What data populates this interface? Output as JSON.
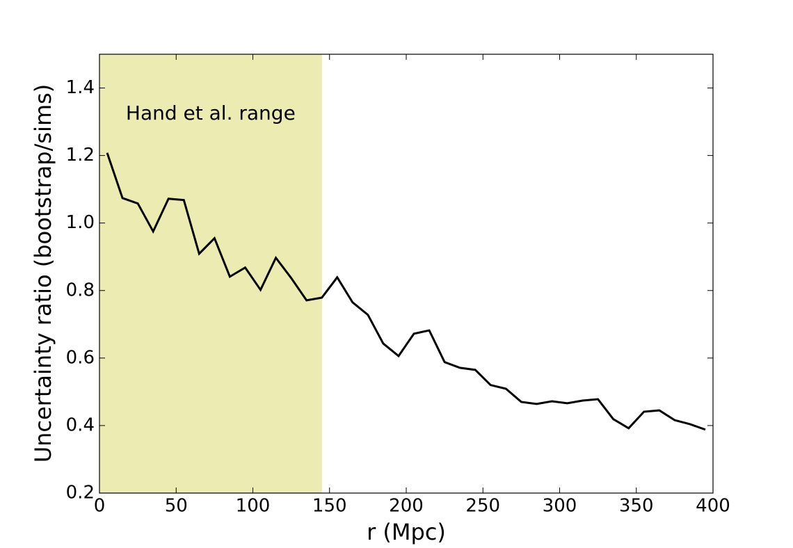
{
  "chart_data": {
    "type": "line",
    "xlabel": "r (Mpc)",
    "ylabel": "Uncertainty ratio (bootstrap/sims)",
    "x": [
      5,
      15,
      25,
      35,
      45,
      55,
      65,
      75,
      85,
      95,
      105,
      115,
      125,
      135,
      145,
      155,
      165,
      175,
      185,
      195,
      205,
      215,
      225,
      235,
      245,
      255,
      265,
      275,
      285,
      295,
      305,
      315,
      325,
      335,
      345,
      355,
      365,
      375,
      385,
      395
    ],
    "series": [
      {
        "color": "#000000",
        "values": [
          1.208,
          1.074,
          1.058,
          0.975,
          1.072,
          1.068,
          0.909,
          0.955,
          0.841,
          0.868,
          0.802,
          0.897,
          0.837,
          0.771,
          0.779,
          0.839,
          0.765,
          0.728,
          0.643,
          0.606,
          0.672,
          0.682,
          0.588,
          0.571,
          0.565,
          0.52,
          0.509,
          0.47,
          0.464,
          0.472,
          0.466,
          0.474,
          0.478,
          0.419,
          0.392,
          0.441,
          0.445,
          0.416,
          0.404,
          0.388
        ]
      }
    ],
    "highlight": {
      "x": [
        0,
        145
      ],
      "color": "#ecebb1",
      "label": "Hand et al. range"
    },
    "xlim": [
      0,
      400
    ],
    "xticks": [
      0,
      50,
      100,
      150,
      200,
      250,
      300,
      350,
      400
    ],
    "ylim": [
      0.2,
      1.5
    ],
    "yticks": [
      0.2,
      0.4,
      0.6,
      0.8,
      {
        "value": 1,
        "label": "1.0"
      },
      1.2,
      1.4
    ],
    "grid": false
  }
}
